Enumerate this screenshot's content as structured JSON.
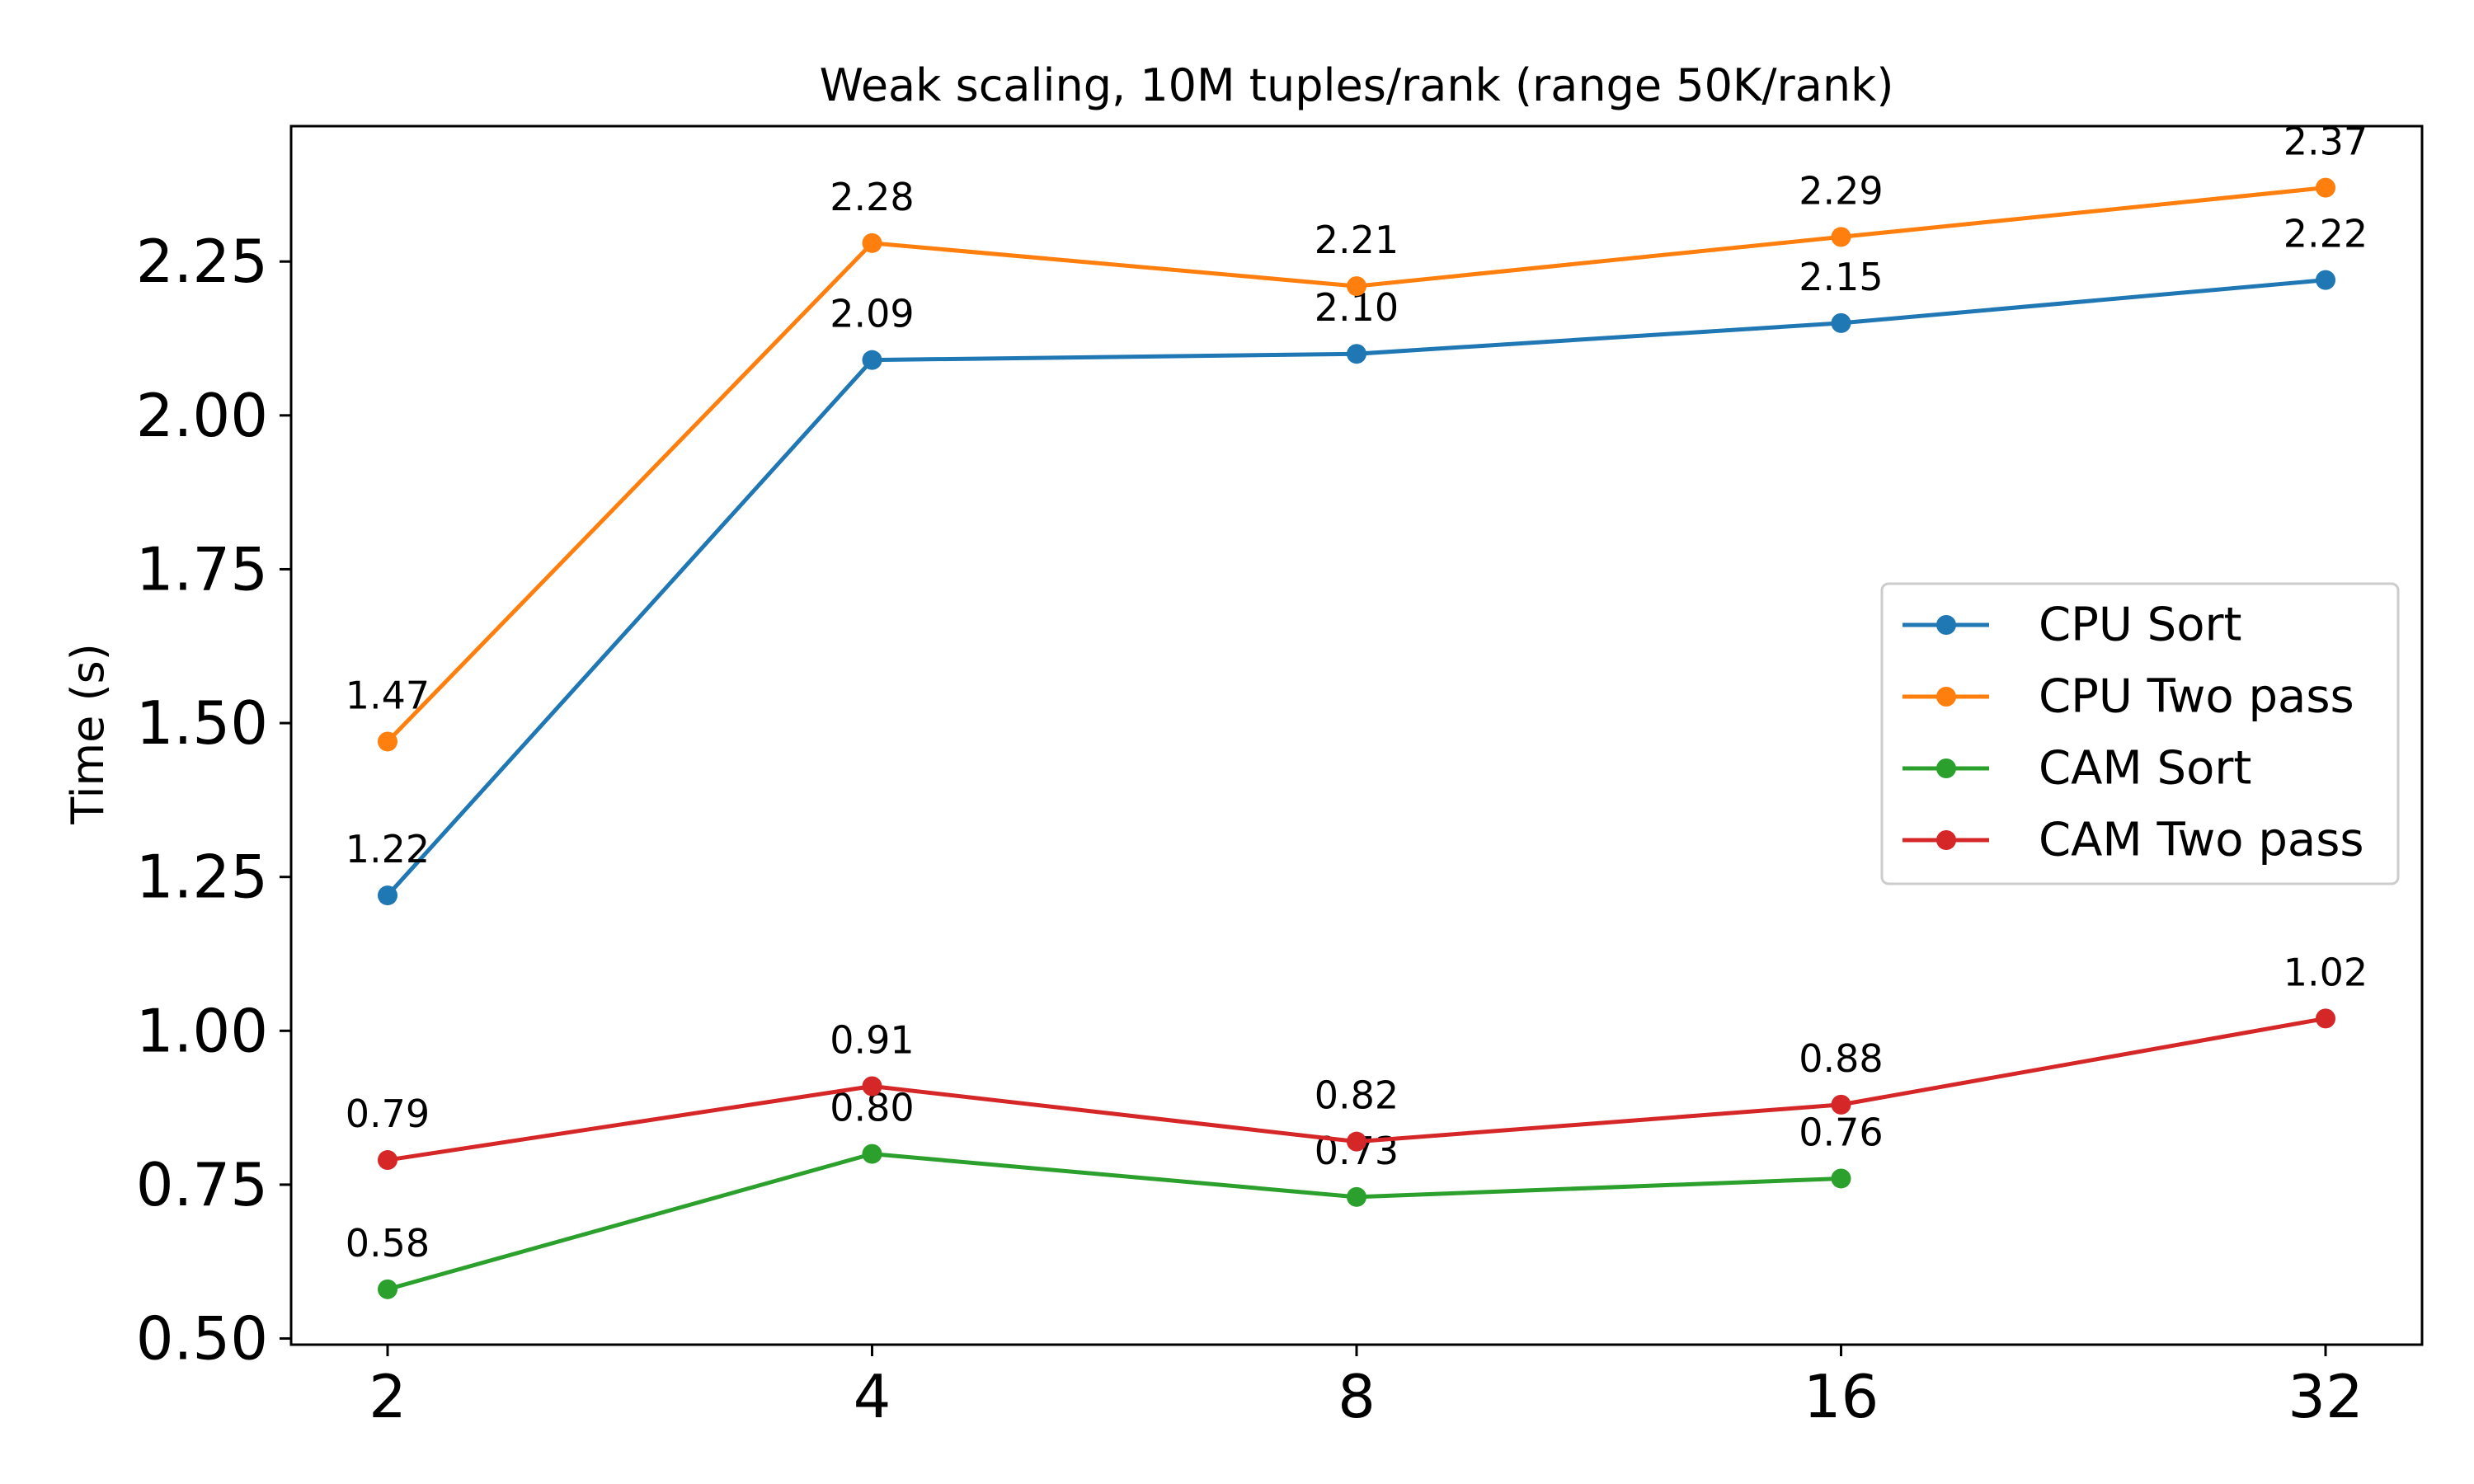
{
  "chart_data": {
    "type": "line",
    "title": "Weak scaling, 10M tuples/rank (range 50K/rank)",
    "xlabel": "",
    "ylabel": "Time (s)",
    "x": [
      2,
      4,
      8,
      16,
      32
    ],
    "x_tick_labels": [
      "2",
      "4",
      "8",
      "16",
      "32"
    ],
    "x_scale": "log2",
    "y_ticks": [
      0.5,
      0.75,
      1.0,
      1.25,
      1.5,
      1.75,
      2.0,
      2.25
    ],
    "y_tick_labels": [
      "0.50",
      "0.75",
      "1.00",
      "1.25",
      "1.50",
      "1.75",
      "2.00",
      "2.25"
    ],
    "ylim": [
      0.49,
      2.47
    ],
    "grid": false,
    "legend_position": "center-right",
    "series": [
      {
        "name": "CPU Sort",
        "color": "#1f77b4",
        "values": [
          1.22,
          2.09,
          2.1,
          2.15,
          2.22
        ],
        "labels": [
          "1.22",
          "2.09",
          "2.10",
          "2.15",
          "2.22"
        ]
      },
      {
        "name": "CPU Two pass",
        "color": "#ff7f0e",
        "values": [
          1.47,
          2.28,
          2.21,
          2.29,
          2.37
        ],
        "labels": [
          "1.47",
          "2.28",
          "2.21",
          "2.29",
          "2.37"
        ]
      },
      {
        "name": "CAM Sort",
        "color": "#2ca02c",
        "values": [
          0.58,
          0.8,
          0.73,
          0.76,
          null
        ],
        "labels": [
          "0.58",
          "0.80",
          "0.73",
          "0.76",
          null
        ]
      },
      {
        "name": "CAM Two pass",
        "color": "#d62728",
        "values": [
          0.79,
          0.91,
          0.82,
          0.88,
          1.02
        ],
        "labels": [
          "0.79",
          "0.91",
          "0.82",
          "0.88",
          "1.02"
        ]
      }
    ]
  }
}
